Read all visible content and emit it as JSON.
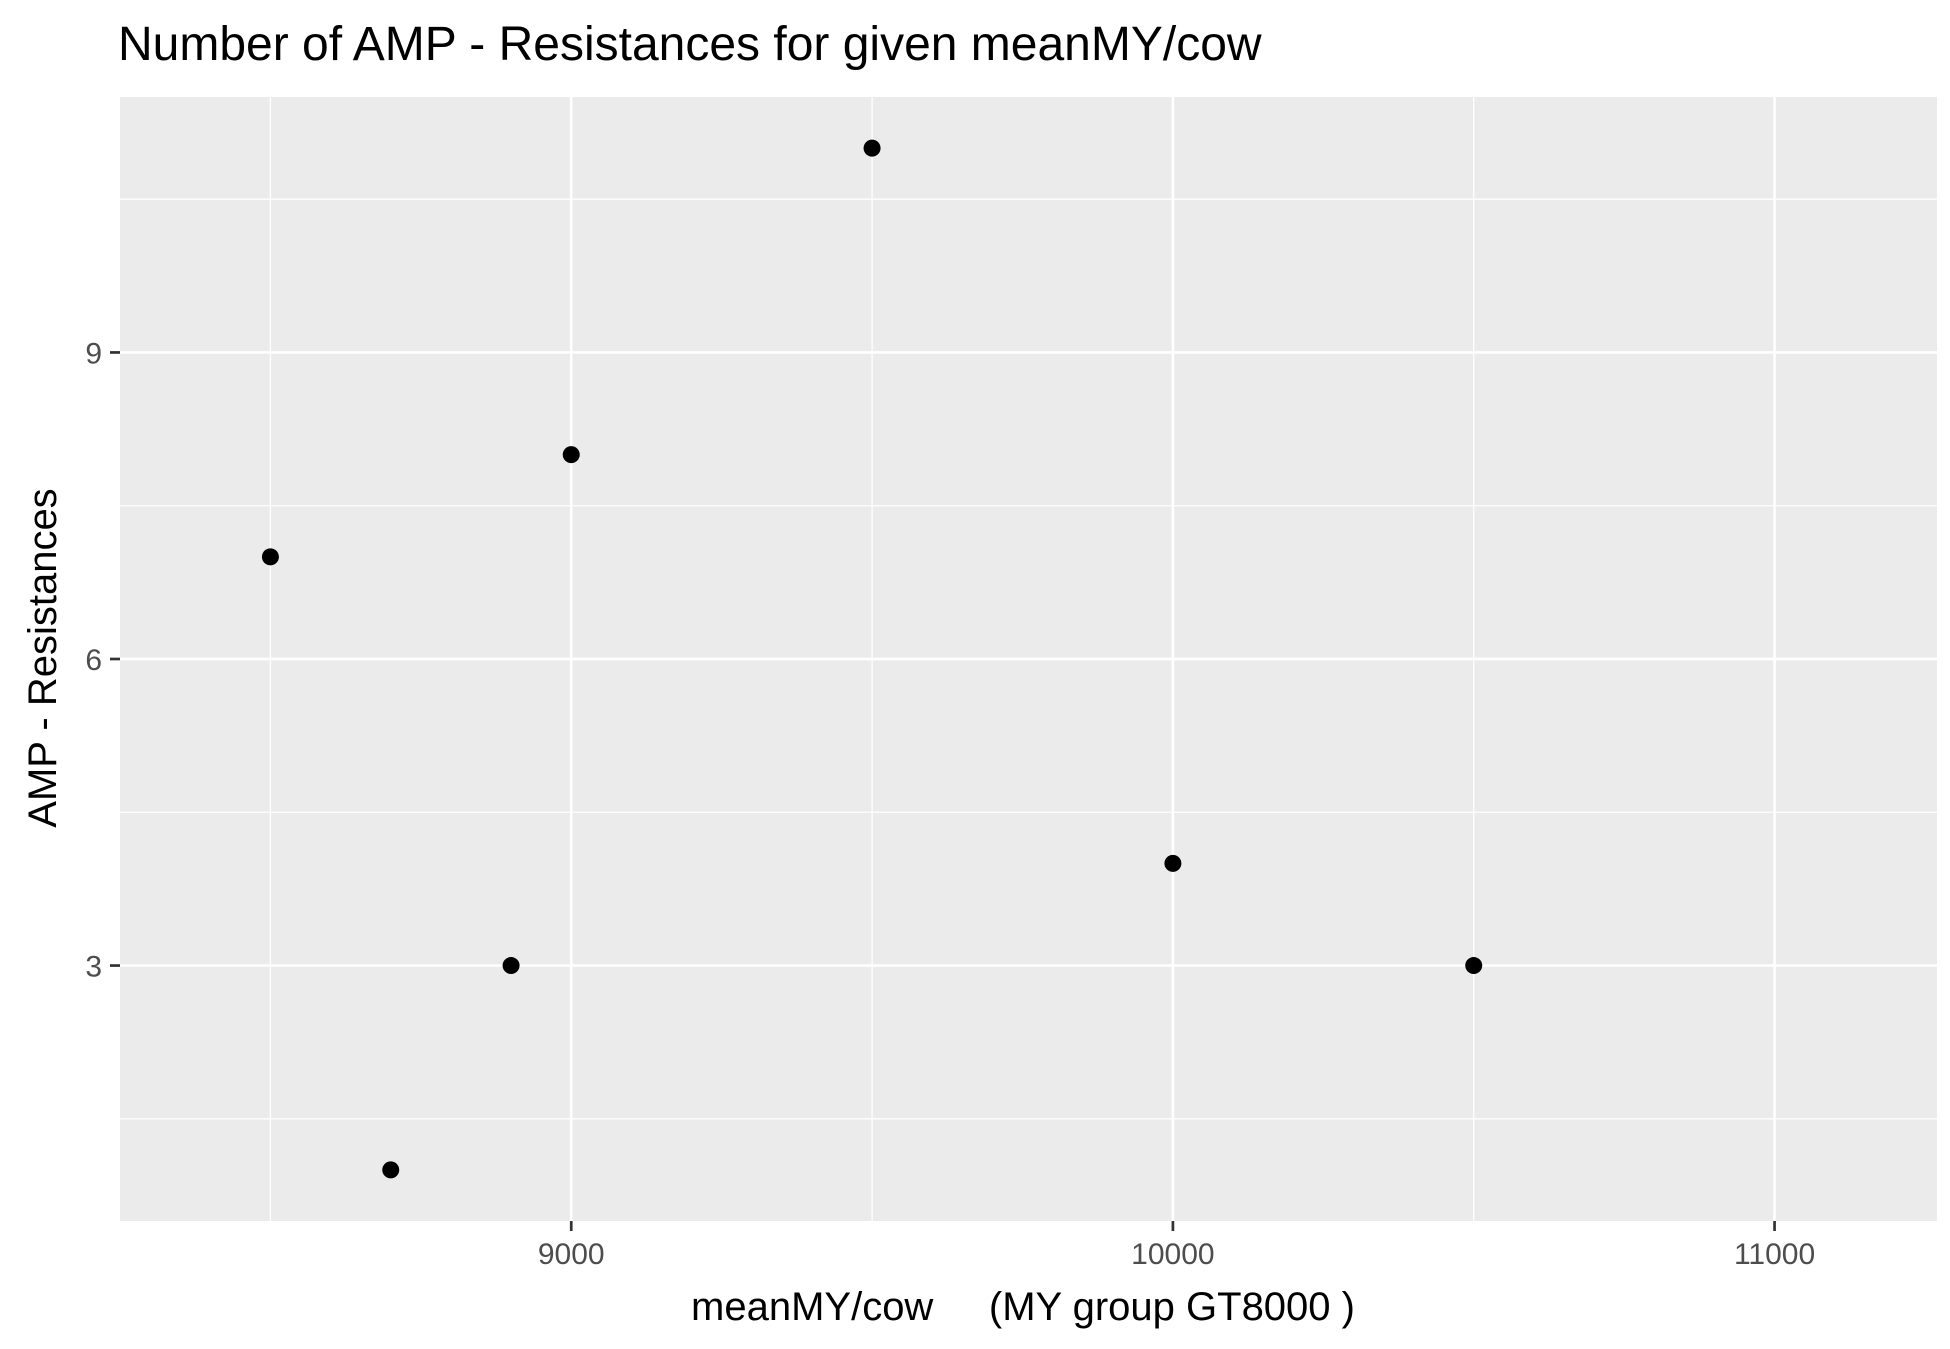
{
  "colors": {
    "panel_background": "#EBEBEB",
    "grid_major": "#FFFFFF",
    "grid_minor": "#FFFFFF",
    "point": "#000000",
    "tick_mark": "#333333",
    "tick_label": "#4D4D4D",
    "text": "#000000"
  },
  "chart_data": {
    "type": "scatter",
    "title": "Number of AMP - Resistances for given meanMY/cow",
    "xlabel": "meanMY/cow     (MY group GT8000 )",
    "ylabel": "AMP - Resistances",
    "xlim": [
      8250,
      11270
    ],
    "ylim": [
      0.5,
      11.5
    ],
    "xticks": [
      9000,
      10000,
      11000
    ],
    "xtick_labels": [
      "9000",
      "10000",
      "11000"
    ],
    "x_minor_gridlines": [
      8500,
      9500,
      10500
    ],
    "yticks": [
      3,
      6,
      9
    ],
    "ytick_labels": [
      "3",
      "6",
      "9"
    ],
    "y_minor_gridlines": [
      1.5,
      4.5,
      7.5,
      10.5
    ],
    "grid": true,
    "legend": "none",
    "points": [
      {
        "x": 8500,
        "y": 7
      },
      {
        "x": 8700,
        "y": 1
      },
      {
        "x": 8900,
        "y": 3
      },
      {
        "x": 9000,
        "y": 8
      },
      {
        "x": 9500,
        "y": 11
      },
      {
        "x": 10000,
        "y": 4
      },
      {
        "x": 10500,
        "y": 3
      }
    ]
  }
}
